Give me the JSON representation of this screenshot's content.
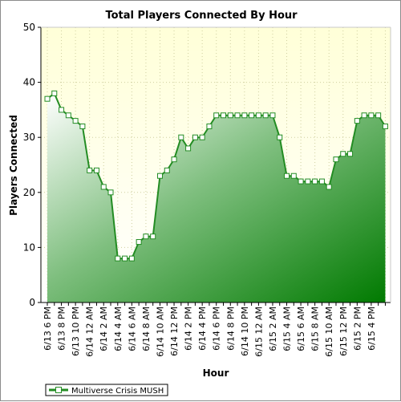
{
  "chart_data": {
    "type": "area",
    "title": "Total Players Connected By Hour",
    "xlabel": "Hour",
    "ylabel": "Players Connected",
    "ylim": [
      0,
      50
    ],
    "yticks": [
      0,
      10,
      20,
      30,
      40,
      50
    ],
    "grid": true,
    "legend_position": "bottom-left",
    "series": [
      {
        "name": "Multiverse Crisis MUSH",
        "color": "#007a00",
        "values": [
          37,
          38,
          35,
          34,
          33,
          32,
          24,
          24,
          21,
          20,
          8,
          8,
          8,
          11,
          12,
          12,
          23,
          24,
          26,
          30,
          28,
          30,
          30,
          32,
          34,
          34,
          34,
          34,
          34,
          34,
          34,
          34,
          34,
          30,
          23,
          23,
          22,
          22,
          22,
          22,
          21,
          26,
          27,
          27,
          33,
          34,
          34,
          34,
          32
        ]
      }
    ],
    "x": [
      "6/13 6 PM",
      "",
      "6/13 8 PM",
      "",
      "6/13 10 PM",
      "",
      "6/14 12 AM",
      "",
      "6/14 2 AM",
      "",
      "6/14 4 AM",
      "",
      "6/14 6 AM",
      "",
      "6/14 8 AM",
      "",
      "6/14 10 AM",
      "",
      "6/14 12 PM",
      "",
      "6/14 2 PM",
      "",
      "6/14 4 PM",
      "",
      "6/14 6 PM",
      "",
      "6/14 8 PM",
      "",
      "6/14 10 PM",
      "",
      "6/15 12 AM",
      "",
      "6/15 2 AM",
      "",
      "6/15 4 AM",
      "",
      "6/15 6 AM",
      "",
      "6/15 8 AM",
      "",
      "6/15 10 AM",
      "",
      "6/15 12 PM",
      "",
      "6/15 2 PM",
      "",
      "6/15 4 PM",
      "",
      ""
    ]
  },
  "colors": {
    "plot_background_top": "#ffffe0",
    "plot_background_bottom": "#ffffff",
    "area_light": "#ffffff",
    "area_dark": "#007a00",
    "line": "#238c23",
    "marker_fill": "#ffffff"
  }
}
